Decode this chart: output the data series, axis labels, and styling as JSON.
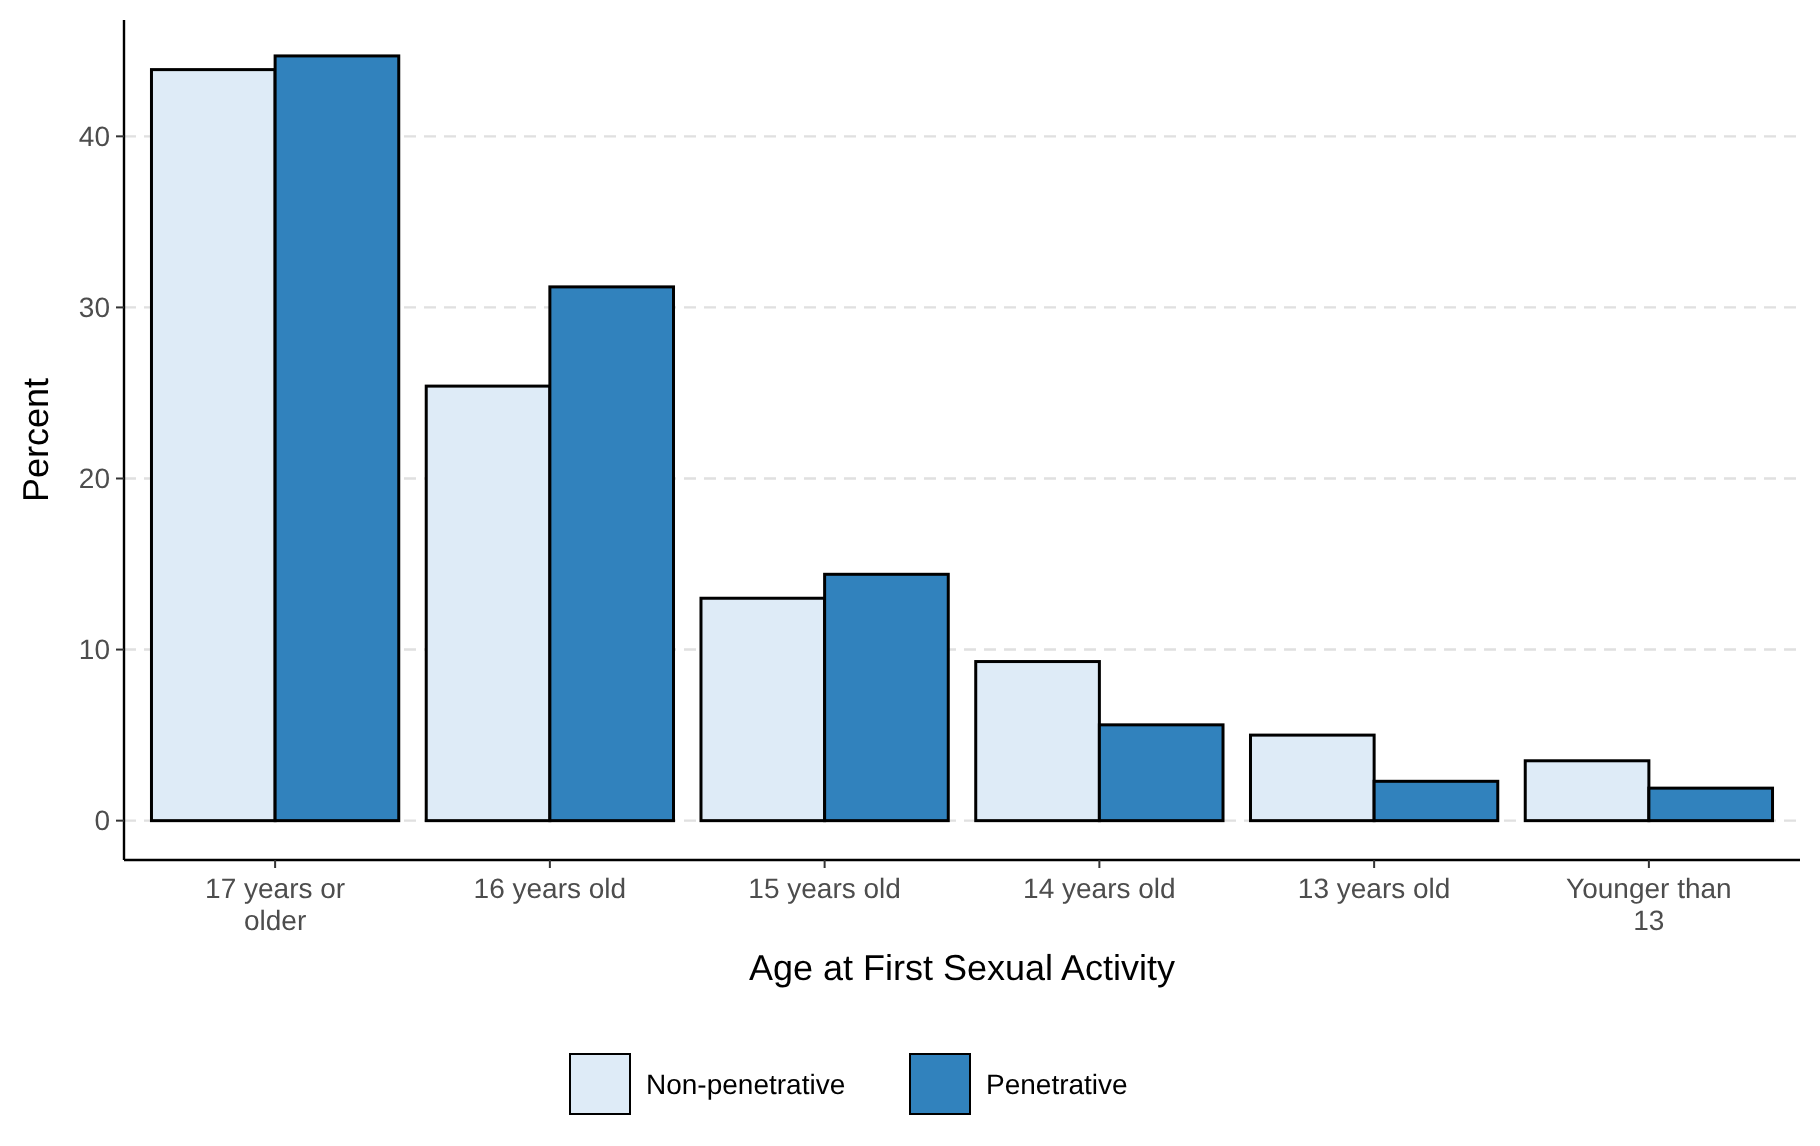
{
  "chart_data": {
    "type": "bar",
    "xlabel": "Age at First Sexual Activity",
    "ylabel": "Percent",
    "categories": [
      "17 years or older",
      "16 years old",
      "15 years old",
      "14 years old",
      "13 years old",
      "Younger than 13"
    ],
    "series": [
      {
        "name": "Non-penetrative",
        "color": "#deebf7",
        "values": [
          43.9,
          25.4,
          13.0,
          9.3,
          5.0,
          3.5
        ]
      },
      {
        "name": "Penetrative",
        "color": "#3182bd",
        "values": [
          44.7,
          31.2,
          14.4,
          5.6,
          2.3,
          1.9
        ]
      }
    ],
    "ylim": [
      -2.3,
      46.8
    ],
    "yticks": [
      0,
      10,
      20,
      30,
      40
    ],
    "grid": "y",
    "legend": "bottom"
  }
}
